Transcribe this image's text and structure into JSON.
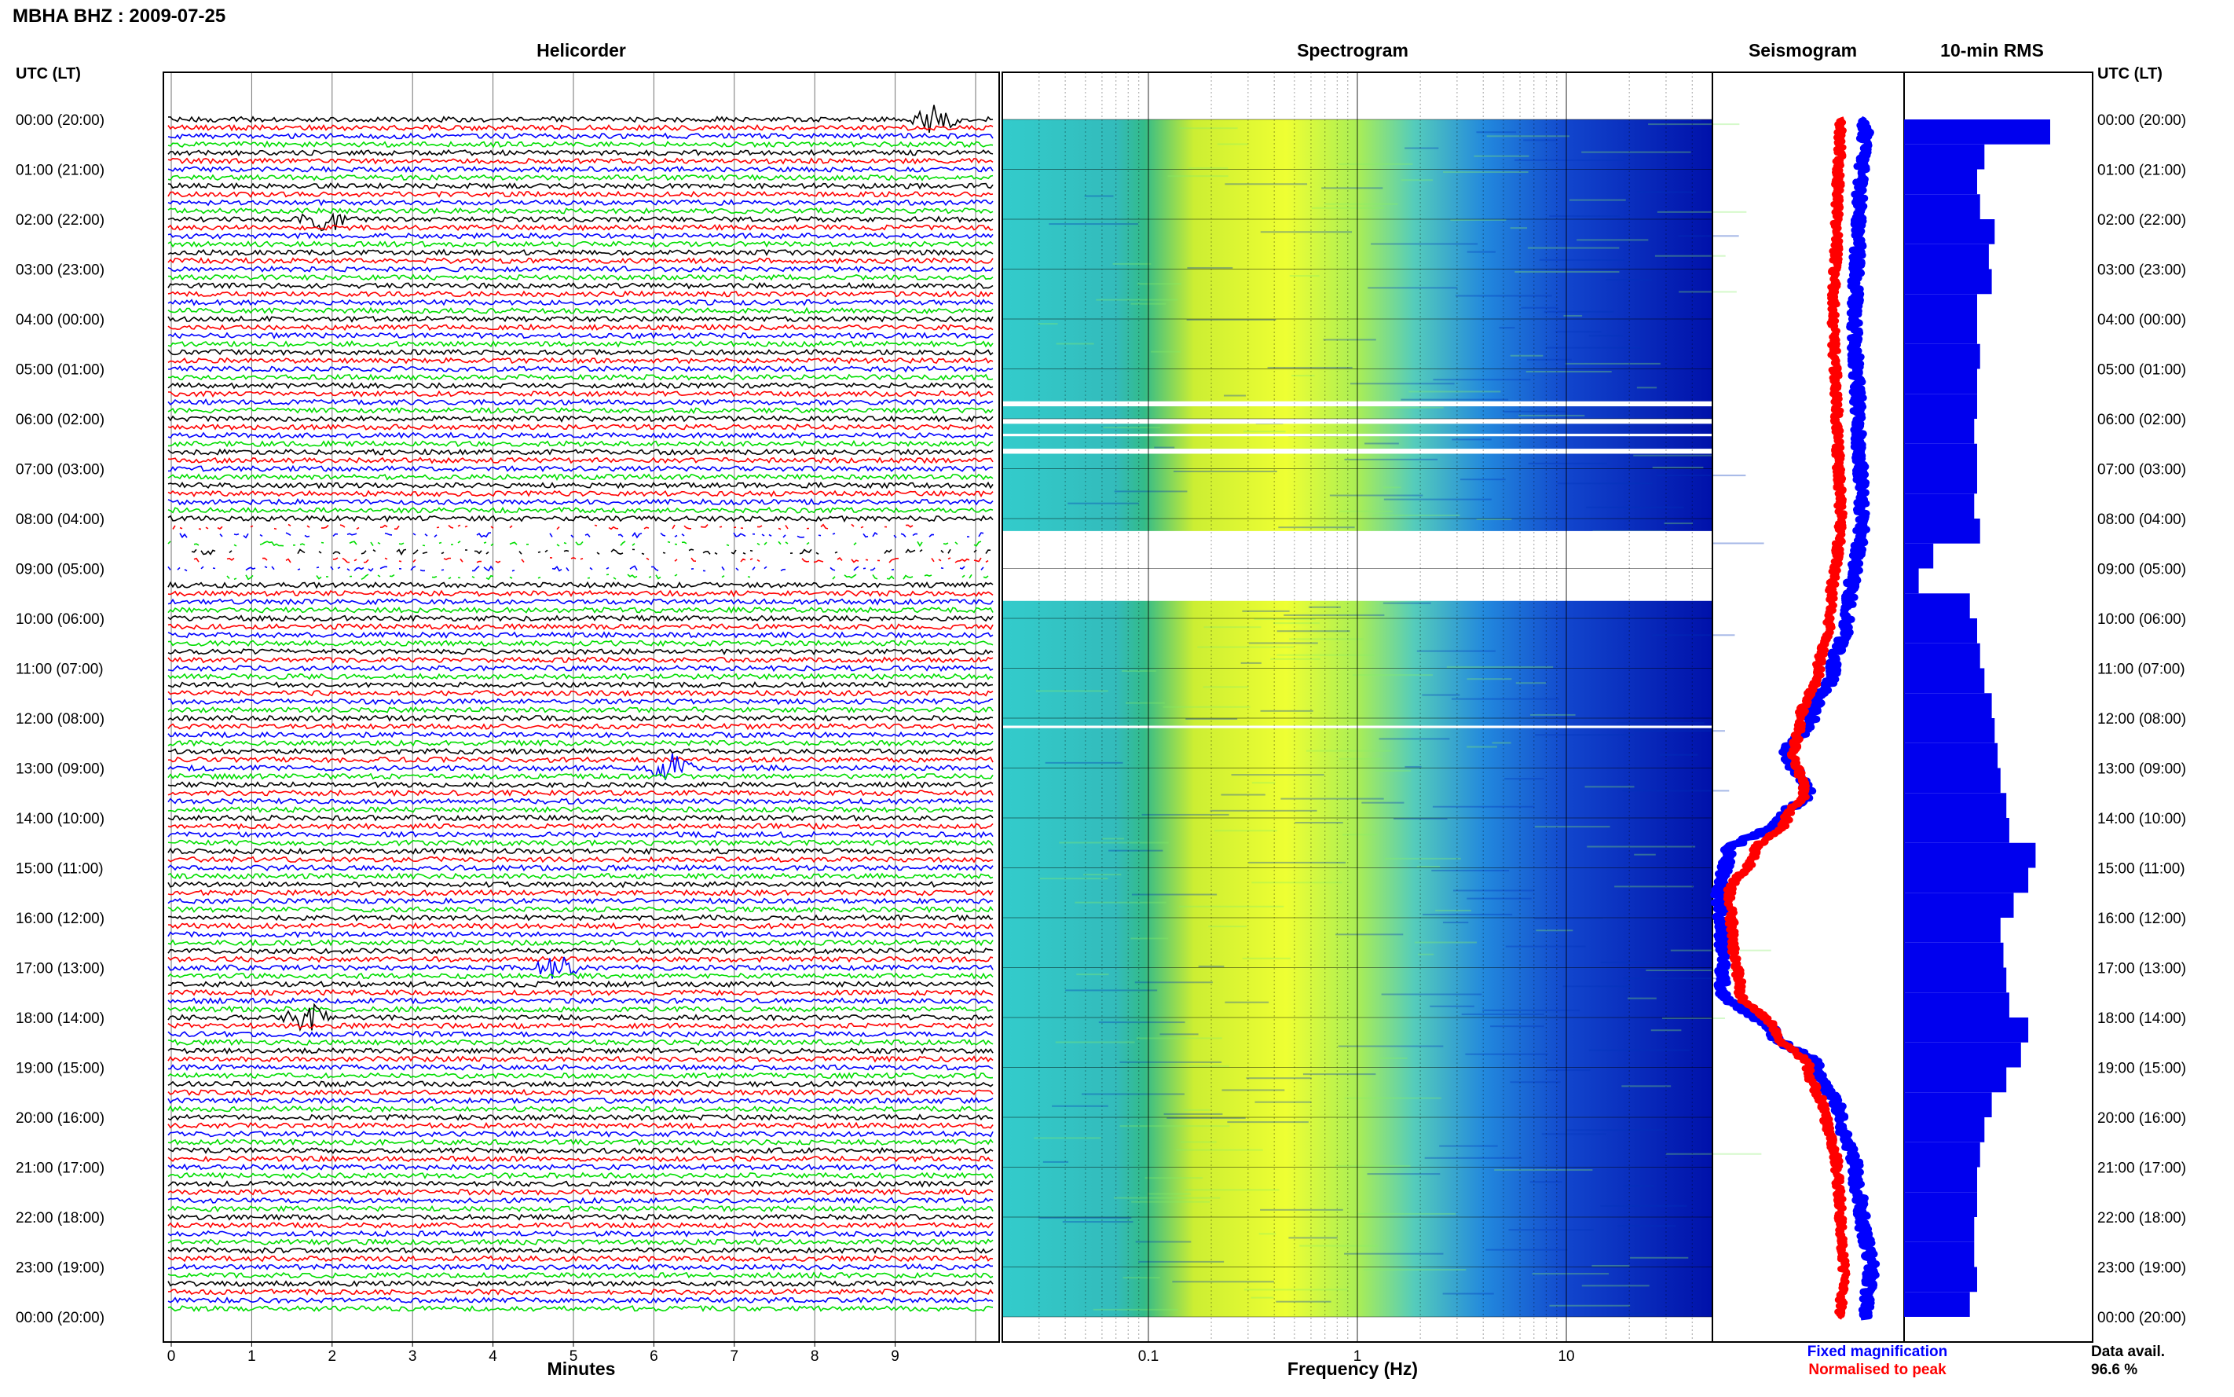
{
  "title": "MBHA BHZ : 2009-07-25",
  "colors": {
    "trace": [
      "#000000",
      "#ff0000",
      "#0000ff",
      "#00dd00"
    ],
    "grid": "#000000",
    "spec_high": "#ffff00",
    "spec_mid": "#22cccc",
    "spec_low": "#0000aa"
  },
  "time_axis": {
    "label": "UTC (LT)",
    "ticks": [
      "00:00 (20:00)",
      "01:00 (21:00)",
      "02:00 (22:00)",
      "03:00 (23:00)",
      "04:00 (00:00)",
      "05:00 (01:00)",
      "06:00 (02:00)",
      "07:00 (03:00)",
      "08:00 (04:00)",
      "09:00 (05:00)",
      "10:00 (06:00)",
      "11:00 (07:00)",
      "12:00 (08:00)",
      "13:00 (09:00)",
      "14:00 (10:00)",
      "15:00 (11:00)",
      "16:00 (12:00)",
      "17:00 (13:00)",
      "18:00 (14:00)",
      "19:00 (15:00)",
      "20:00 (16:00)",
      "21:00 (17:00)",
      "22:00 (18:00)",
      "23:00 (19:00)",
      "00:00 (20:00)"
    ]
  },
  "chart_data": [
    {
      "type": "line",
      "title": "Helicorder",
      "xlabel": "Minutes",
      "x_ticks": [
        "0",
        "1",
        "2",
        "3",
        "4",
        "5",
        "6",
        "7",
        "8",
        "9"
      ],
      "xlim": [
        0,
        10
      ],
      "traces_per_hour": 6,
      "hours": 24,
      "events": [
        {
          "hour": 0,
          "minute": 9.5,
          "label": ""
        },
        {
          "hour": 2,
          "minute": 1.9,
          "label": ""
        },
        {
          "hour": 13,
          "minute": 6.2,
          "label": ""
        },
        {
          "hour": 17,
          "minute": 4.8,
          "label": ""
        },
        {
          "hour": 18,
          "minute": 1.7,
          "label": ""
        }
      ],
      "gaps": [
        {
          "from_hour": 8.1,
          "to_hour": 9.3
        }
      ]
    },
    {
      "type": "heatmap",
      "title": "Spectrogram",
      "xlabel": "Frequency (Hz)",
      "x_scale": "log",
      "x_ticks": [
        "0.1",
        "1",
        "10"
      ],
      "xlim": [
        0.02,
        50
      ],
      "gaps": [
        {
          "from_hour": 5.65,
          "to_hour": 5.75
        },
        {
          "from_hour": 6.0,
          "to_hour": 6.1
        },
        {
          "from_hour": 6.3,
          "to_hour": 6.35
        },
        {
          "from_hour": 6.6,
          "to_hour": 6.7
        },
        {
          "from_hour": 8.25,
          "to_hour": 9.65
        },
        {
          "from_hour": 12.15,
          "to_hour": 12.2
        }
      ]
    },
    {
      "type": "line",
      "title": "Seismogram",
      "legend": [
        "Fixed magnification",
        "Normalised to peak"
      ],
      "series": [
        {
          "name": "Fixed magnification",
          "color": "#0000ff",
          "hours": [
            0,
            2,
            4,
            6,
            8,
            10,
            11,
            12,
            12.7,
            13.5,
            14,
            14.7,
            15.5,
            16.5,
            17.5,
            18.3,
            19,
            20,
            21,
            22,
            23,
            24
          ],
          "values": [
            0.82,
            0.78,
            0.76,
            0.78,
            0.8,
            0.72,
            0.64,
            0.52,
            0.38,
            0.5,
            0.35,
            0.05,
            0.0,
            0.02,
            0.02,
            0.3,
            0.55,
            0.68,
            0.76,
            0.8,
            0.85,
            0.82
          ]
        },
        {
          "name": "Normalised to peak",
          "color": "#ff0000",
          "hours": [
            0,
            2,
            4,
            6,
            8,
            10,
            11,
            12,
            12.7,
            13.5,
            14,
            14.7,
            15.5,
            16.5,
            17.5,
            18.3,
            19,
            20,
            21,
            22,
            23,
            24
          ],
          "values": [
            0.68,
            0.66,
            0.64,
            0.66,
            0.68,
            0.62,
            0.56,
            0.46,
            0.42,
            0.48,
            0.38,
            0.2,
            0.06,
            0.08,
            0.12,
            0.32,
            0.5,
            0.6,
            0.66,
            0.68,
            0.7,
            0.68
          ]
        }
      ]
    },
    {
      "type": "bar",
      "title": "10-min RMS",
      "orientation": "horizontal",
      "hours": [
        0,
        0.5,
        1,
        1.5,
        2,
        2.5,
        3,
        3.5,
        4,
        4.5,
        5,
        5.5,
        6,
        6.5,
        7,
        7.5,
        8,
        8.5,
        9,
        9.5,
        10,
        10.5,
        11,
        11.5,
        12,
        12.5,
        13,
        13.5,
        14,
        14.5,
        15,
        15.5,
        16,
        16.5,
        17,
        17.5,
        18,
        18.5,
        19,
        19.5,
        20,
        20.5,
        21,
        21.5,
        22,
        22.5,
        23,
        23.5
      ],
      "values": [
        1.0,
        0.55,
        0.5,
        0.52,
        0.62,
        0.58,
        0.6,
        0.5,
        0.5,
        0.52,
        0.5,
        0.5,
        0.48,
        0.5,
        0.5,
        0.48,
        0.52,
        0.2,
        0.1,
        0.45,
        0.5,
        0.52,
        0.55,
        0.6,
        0.62,
        0.64,
        0.66,
        0.7,
        0.72,
        0.9,
        0.85,
        0.75,
        0.66,
        0.68,
        0.7,
        0.72,
        0.85,
        0.8,
        0.7,
        0.6,
        0.55,
        0.52,
        0.5,
        0.5,
        0.48,
        0.48,
        0.5,
        0.45
      ]
    }
  ],
  "footer": {
    "data_avail_label": "Data avail.",
    "data_avail_value": "96.6 %"
  }
}
